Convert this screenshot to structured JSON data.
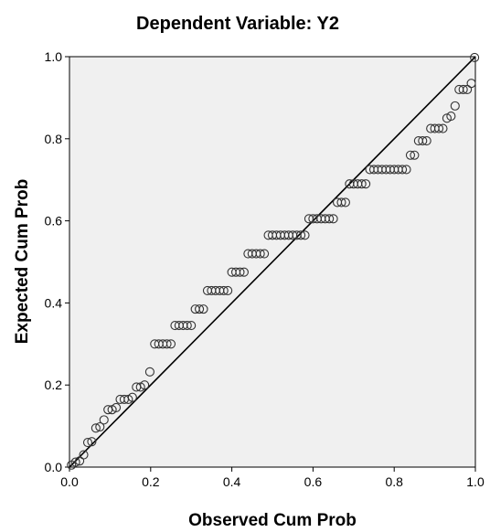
{
  "chart_data": {
    "type": "scatter",
    "title": "Dependent Variable: Y2",
    "xlabel": "Observed Cum Prob",
    "ylabel": "Expected Cum Prob",
    "xlim": [
      0,
      1
    ],
    "ylim": [
      0,
      1
    ],
    "x_ticks": [
      "0.0",
      "0.2",
      "0.4",
      "0.6",
      "0.8",
      "1.0"
    ],
    "y_ticks": [
      "0.0",
      "0.2",
      "0.4",
      "0.6",
      "0.8",
      "1.0"
    ],
    "grid": false,
    "reference_line": {
      "from": [
        0,
        0
      ],
      "to": [
        1,
        1
      ]
    },
    "colors": {
      "plot_background": "#f0f0f0",
      "marker": "#333333",
      "line": "#000000"
    },
    "points": [
      [
        0.005,
        0.005
      ],
      [
        0.015,
        0.012
      ],
      [
        0.025,
        0.015
      ],
      [
        0.035,
        0.03
      ],
      [
        0.045,
        0.06
      ],
      [
        0.055,
        0.062
      ],
      [
        0.065,
        0.095
      ],
      [
        0.075,
        0.098
      ],
      [
        0.085,
        0.115
      ],
      [
        0.095,
        0.14
      ],
      [
        0.105,
        0.14
      ],
      [
        0.115,
        0.145
      ],
      [
        0.125,
        0.165
      ],
      [
        0.135,
        0.165
      ],
      [
        0.145,
        0.165
      ],
      [
        0.155,
        0.17
      ],
      [
        0.165,
        0.195
      ],
      [
        0.175,
        0.195
      ],
      [
        0.185,
        0.2
      ],
      [
        0.198,
        0.232
      ],
      [
        0.21,
        0.3
      ],
      [
        0.22,
        0.3
      ],
      [
        0.23,
        0.3
      ],
      [
        0.24,
        0.3
      ],
      [
        0.25,
        0.3
      ],
      [
        0.26,
        0.345
      ],
      [
        0.27,
        0.345
      ],
      [
        0.28,
        0.345
      ],
      [
        0.29,
        0.345
      ],
      [
        0.3,
        0.345
      ],
      [
        0.31,
        0.385
      ],
      [
        0.32,
        0.385
      ],
      [
        0.33,
        0.385
      ],
      [
        0.34,
        0.43
      ],
      [
        0.35,
        0.43
      ],
      [
        0.36,
        0.43
      ],
      [
        0.37,
        0.43
      ],
      [
        0.38,
        0.43
      ],
      [
        0.39,
        0.43
      ],
      [
        0.4,
        0.475
      ],
      [
        0.41,
        0.475
      ],
      [
        0.42,
        0.475
      ],
      [
        0.43,
        0.475
      ],
      [
        0.44,
        0.52
      ],
      [
        0.45,
        0.52
      ],
      [
        0.46,
        0.52
      ],
      [
        0.47,
        0.52
      ],
      [
        0.48,
        0.52
      ],
      [
        0.49,
        0.565
      ],
      [
        0.5,
        0.565
      ],
      [
        0.51,
        0.565
      ],
      [
        0.52,
        0.565
      ],
      [
        0.53,
        0.565
      ],
      [
        0.54,
        0.565
      ],
      [
        0.55,
        0.565
      ],
      [
        0.56,
        0.565
      ],
      [
        0.57,
        0.565
      ],
      [
        0.58,
        0.565
      ],
      [
        0.59,
        0.605
      ],
      [
        0.6,
        0.605
      ],
      [
        0.61,
        0.605
      ],
      [
        0.62,
        0.605
      ],
      [
        0.63,
        0.605
      ],
      [
        0.64,
        0.605
      ],
      [
        0.65,
        0.605
      ],
      [
        0.66,
        0.645
      ],
      [
        0.67,
        0.645
      ],
      [
        0.68,
        0.645
      ],
      [
        0.69,
        0.69
      ],
      [
        0.7,
        0.69
      ],
      [
        0.71,
        0.69
      ],
      [
        0.72,
        0.69
      ],
      [
        0.73,
        0.69
      ],
      [
        0.74,
        0.725
      ],
      [
        0.75,
        0.725
      ],
      [
        0.76,
        0.725
      ],
      [
        0.77,
        0.725
      ],
      [
        0.78,
        0.725
      ],
      [
        0.79,
        0.725
      ],
      [
        0.8,
        0.725
      ],
      [
        0.81,
        0.725
      ],
      [
        0.82,
        0.725
      ],
      [
        0.83,
        0.725
      ],
      [
        0.84,
        0.76
      ],
      [
        0.85,
        0.76
      ],
      [
        0.86,
        0.795
      ],
      [
        0.87,
        0.795
      ],
      [
        0.88,
        0.795
      ],
      [
        0.89,
        0.825
      ],
      [
        0.9,
        0.825
      ],
      [
        0.91,
        0.825
      ],
      [
        0.92,
        0.825
      ],
      [
        0.93,
        0.85
      ],
      [
        0.94,
        0.855
      ],
      [
        0.95,
        0.88
      ],
      [
        0.96,
        0.92
      ],
      [
        0.97,
        0.92
      ],
      [
        0.98,
        0.92
      ],
      [
        0.99,
        0.935
      ],
      [
        0.998,
        0.998
      ]
    ]
  }
}
